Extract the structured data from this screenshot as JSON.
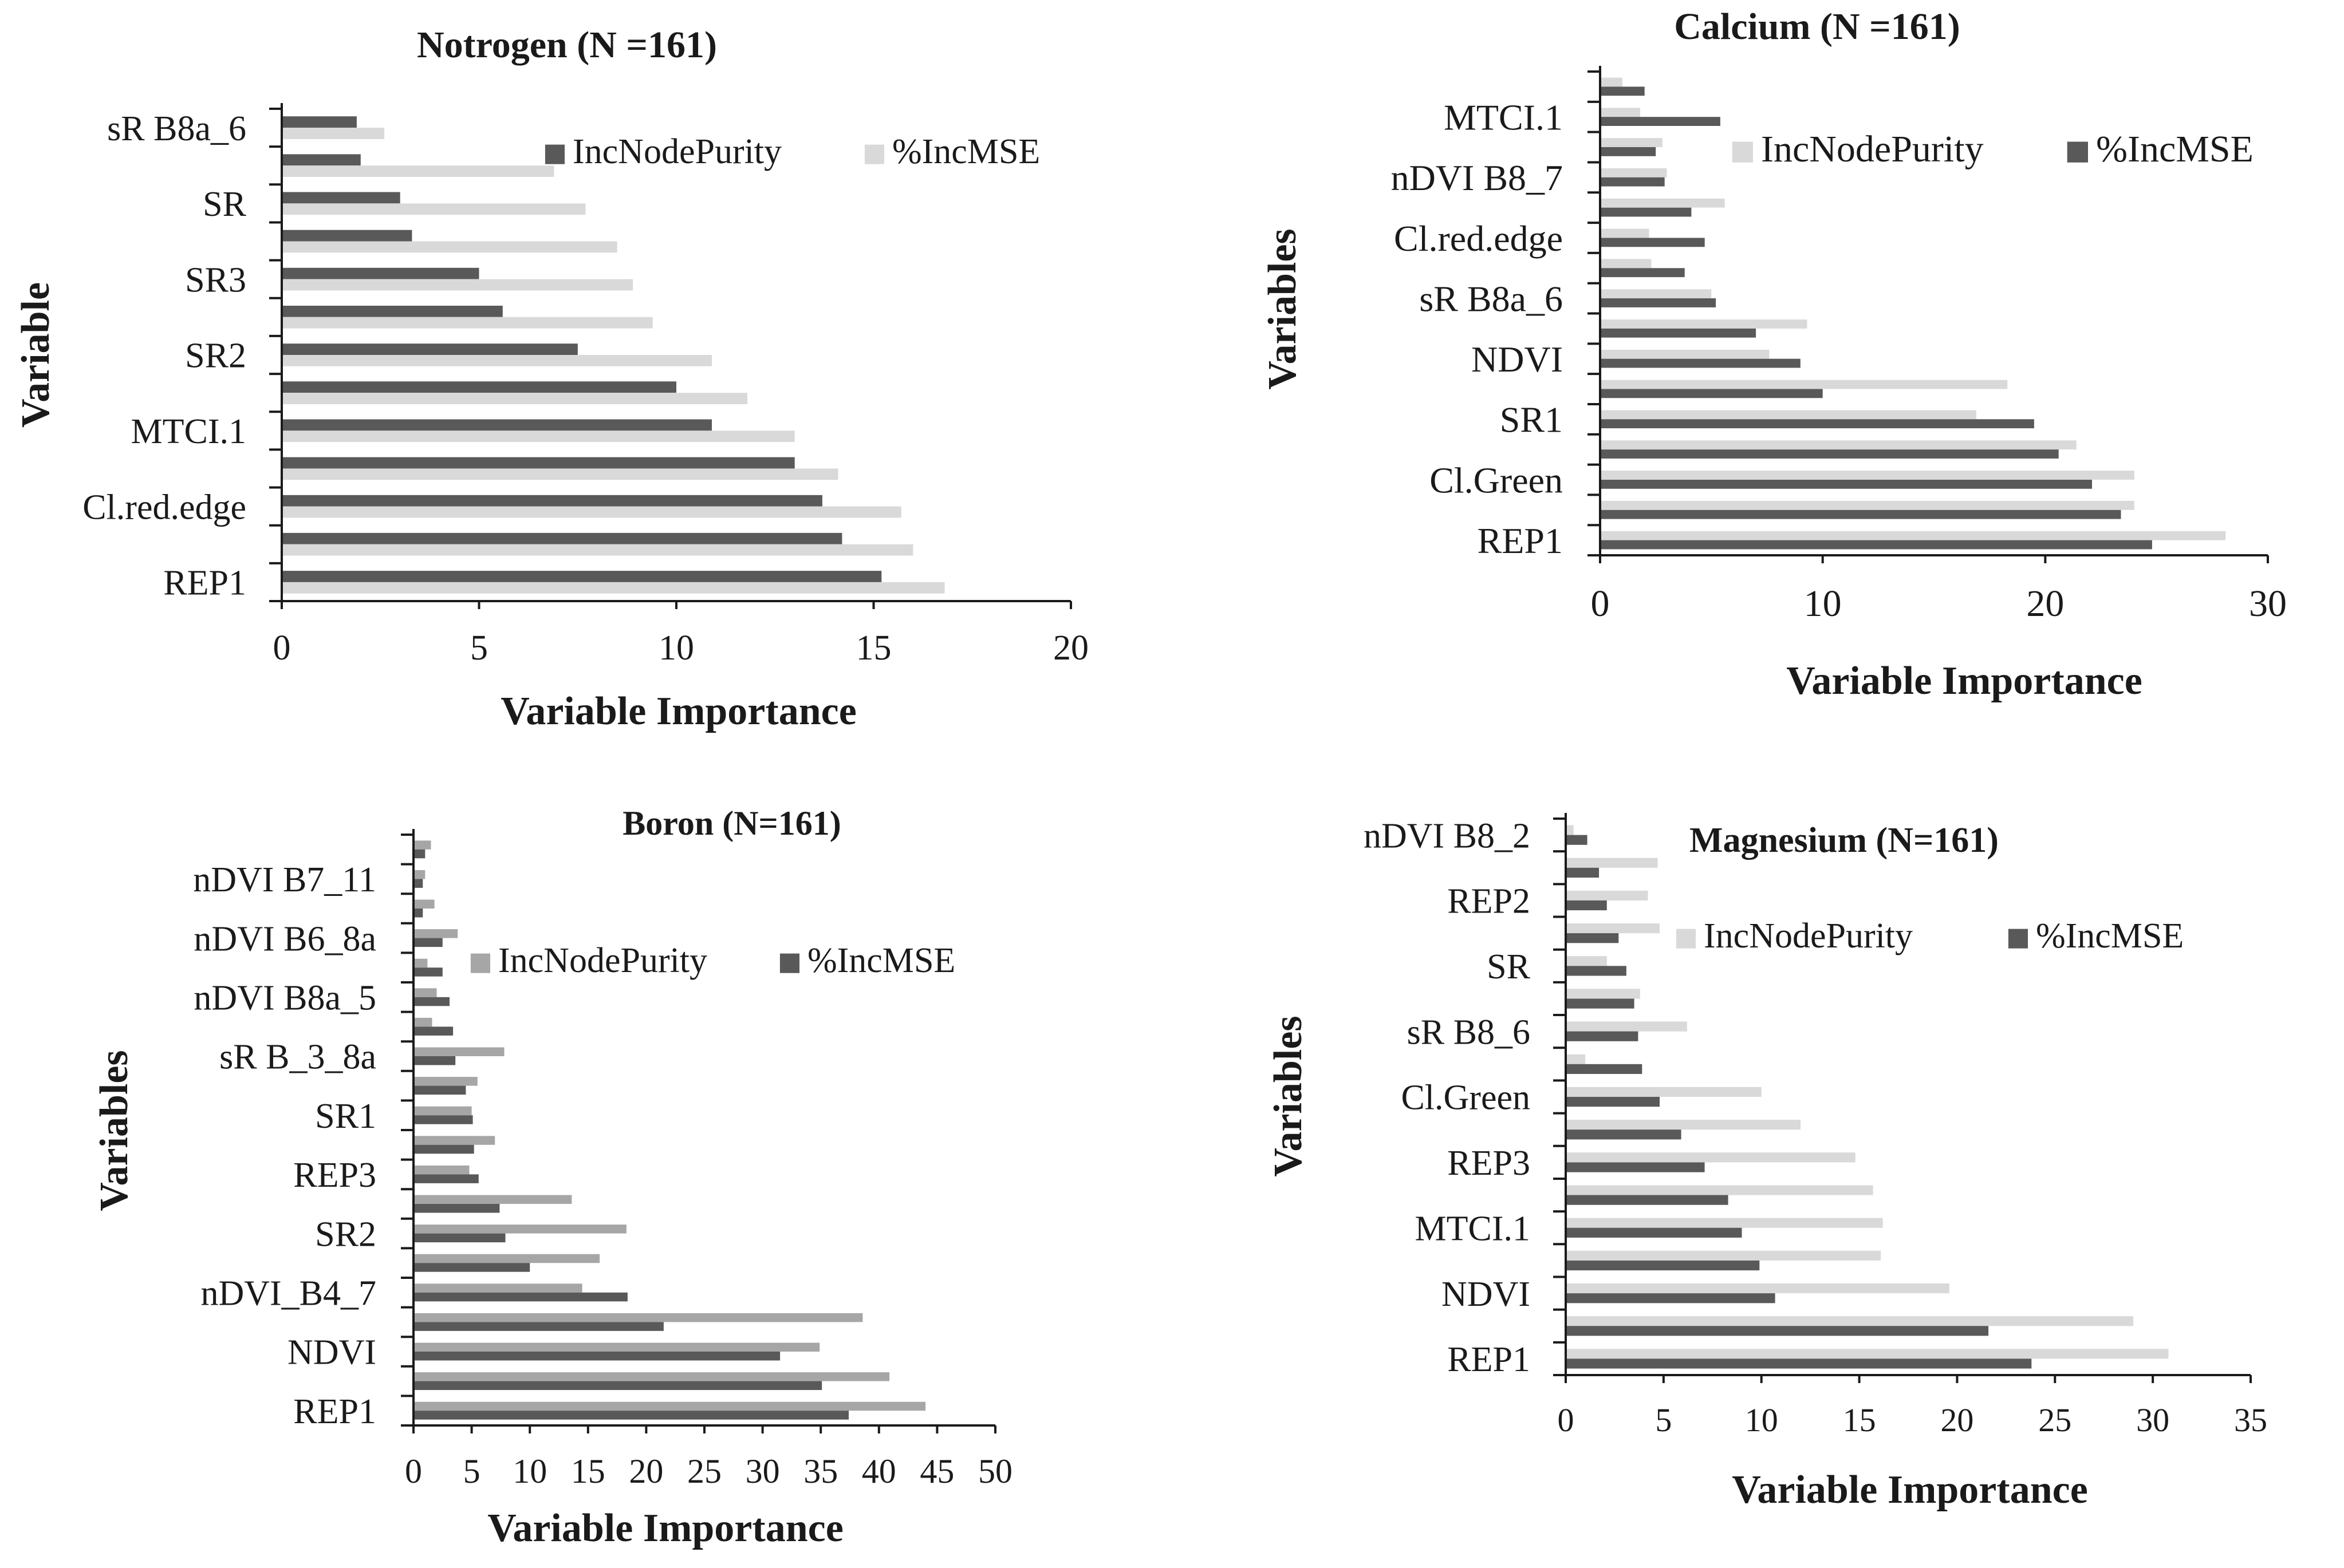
{
  "colors": {
    "dark": "#595959",
    "light": "#d9d9d9",
    "mid": "#a6a6a6"
  },
  "chart_data": [
    {
      "id": "nitrogen",
      "type": "bar",
      "orientation": "horizontal",
      "title": "Notrogen (N =161)",
      "xlabel": "Variable Importance",
      "ylabel": "Variable",
      "xlim": [
        0,
        20
      ],
      "xticks": [
        0,
        5,
        10,
        15,
        20
      ],
      "grid": false,
      "legend": {
        "placement": "top-right"
      },
      "category_labels": [
        "sR B8a_6",
        "SR",
        "SR3",
        "SR2",
        "MTCI.1",
        "Cl.red.edge",
        "REP1"
      ],
      "series": [
        {
          "name": "IncNodePurity",
          "color": "dark",
          "values": [
            1.9,
            2.0,
            3.0,
            3.3,
            5.0,
            5.6,
            7.5,
            10.0,
            10.9,
            13.0,
            13.7,
            14.2,
            15.2
          ]
        },
        {
          "name": "%IncMSE",
          "color": "light",
          "values": [
            2.6,
            6.9,
            7.7,
            8.5,
            8.9,
            9.4,
            10.9,
            11.8,
            13.0,
            14.1,
            15.7,
            16.0,
            16.8
          ]
        }
      ]
    },
    {
      "id": "calcium",
      "type": "bar",
      "orientation": "horizontal",
      "title": "Calcium (N =161)",
      "xlabel": "Variable Importance",
      "ylabel": "Variables",
      "xlim": [
        0,
        30
      ],
      "xticks": [
        0,
        10,
        20,
        30
      ],
      "grid": false,
      "legend": {
        "placement": "top-right"
      },
      "category_labels": [
        "MTCI.1",
        "nDVI B8_7",
        "Cl.red.edge",
        "sR B8a_6",
        "NDVI",
        "SR1",
        "Cl.Green",
        "REP1"
      ],
      "series": [
        {
          "name": "IncNodePurity",
          "color": "light",
          "values": [
            1.0,
            1.8,
            2.8,
            3.0,
            5.6,
            2.2,
            2.3,
            5.0,
            9.3,
            7.6,
            18.3,
            16.9,
            21.4,
            24.0,
            24.0,
            28.1
          ]
        },
        {
          "name": "%IncMSE",
          "color": "dark",
          "values": [
            2.0,
            5.4,
            2.5,
            2.9,
            4.1,
            4.7,
            3.8,
            5.2,
            7.0,
            9.0,
            10.0,
            19.5,
            20.6,
            22.1,
            23.4,
            24.8
          ]
        }
      ]
    },
    {
      "id": "boron",
      "type": "bar",
      "orientation": "horizontal",
      "title": "Boron (N=161)",
      "xlabel": "Variable Importance",
      "ylabel": "Variables",
      "xlim": [
        0,
        50
      ],
      "xticks": [
        0,
        5,
        10,
        15,
        20,
        25,
        30,
        35,
        40,
        45,
        50
      ],
      "grid": false,
      "legend": {
        "placement": "top-right"
      },
      "category_labels": [
        "nDVI B7_11",
        "nDVI B6_8a",
        "nDVI B8a_5",
        "sR B_3_8a",
        "SR1",
        "REP3",
        "SR2",
        "nDVI_B4_7",
        "NDVI",
        "REP1"
      ],
      "series": [
        {
          "name": "IncNodePurity",
          "color": "mid",
          "values": [
            1.5,
            1.0,
            1.8,
            3.8,
            1.2,
            2.0,
            1.6,
            7.8,
            5.5,
            5.0,
            7.0,
            4.8,
            13.6,
            18.3,
            16.0,
            14.5,
            38.6,
            34.9,
            40.9,
            44.0
          ]
        },
        {
          "name": "%IncMSE",
          "color": "dark",
          "values": [
            1.0,
            0.8,
            0.8,
            2.5,
            2.5,
            3.1,
            3.4,
            3.6,
            4.5,
            5.1,
            5.2,
            5.6,
            7.4,
            7.9,
            10.0,
            18.4,
            21.5,
            31.5,
            35.1,
            37.4
          ]
        }
      ]
    },
    {
      "id": "magnesium",
      "type": "bar",
      "orientation": "horizontal",
      "title": "Magnesium (N=161)",
      "xlabel": "Variable Importance",
      "ylabel": "Variables",
      "xlim": [
        0,
        35
      ],
      "xticks": [
        0,
        5,
        10,
        15,
        20,
        25,
        30,
        35
      ],
      "grid": false,
      "legend": {
        "placement": "top-right"
      },
      "category_labels": [
        "nDVI B8_2",
        "REP2",
        "SR",
        "sR B8_6",
        "Cl.Green",
        "REP3",
        "MTCI.1",
        "NDVI",
        "REP1"
      ],
      "series": [
        {
          "name": "IncNodePurity",
          "color": "light",
          "values": [
            0.4,
            4.7,
            4.2,
            4.8,
            2.1,
            3.8,
            6.2,
            1.0,
            10.0,
            12.0,
            14.8,
            15.7,
            16.2,
            16.1,
            19.6,
            29.0,
            30.8
          ]
        },
        {
          "name": "%IncMSE",
          "color": "dark",
          "values": [
            1.1,
            1.7,
            2.1,
            2.7,
            3.1,
            3.5,
            3.7,
            3.9,
            4.8,
            5.9,
            7.1,
            8.3,
            9.0,
            9.9,
            10.7,
            21.6,
            23.8
          ]
        }
      ]
    }
  ]
}
